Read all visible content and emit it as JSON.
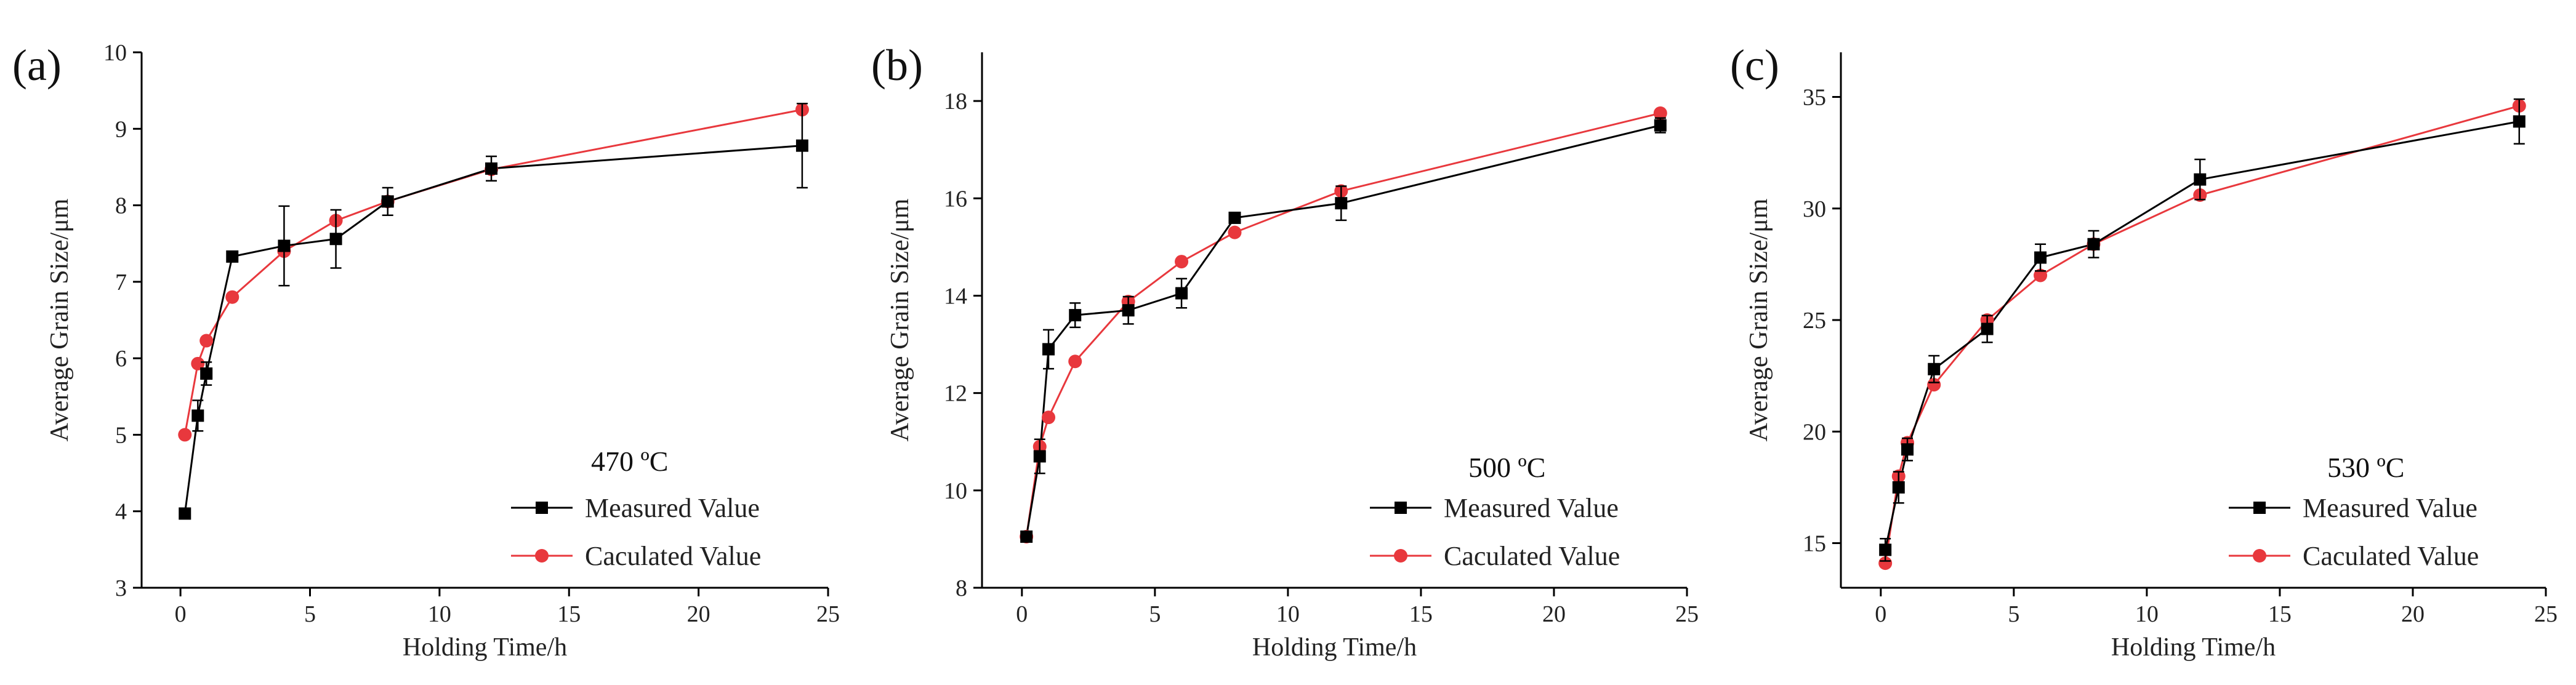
{
  "chart_data": [
    {
      "type": "line",
      "panel_label": "(a)",
      "annotation": "470 ºC",
      "xlabel": "Holding Time/h",
      "ylabel": "Average Grain Size/μm",
      "xlim": [
        -1.5,
        25
      ],
      "ylim": [
        3,
        10
      ],
      "xticks": [
        0,
        5,
        10,
        15,
        20,
        25
      ],
      "yticks": [
        3,
        4,
        5,
        6,
        7,
        8,
        9,
        10
      ],
      "legend_position": "bottom-right",
      "series": [
        {
          "name": "Measured Value",
          "color": "#000000",
          "marker": "square",
          "x": [
            0.17,
            0.67,
            1,
            2,
            4,
            6,
            8,
            12,
            24
          ],
          "y": [
            3.97,
            5.25,
            5.8,
            7.33,
            7.47,
            7.56,
            8.05,
            8.48,
            8.78
          ],
          "err": [
            0.05,
            0.2,
            0.15,
            0.05,
            0.52,
            0.38,
            0.18,
            0.16,
            0.55
          ]
        },
        {
          "name": "Caculated Value",
          "color": "#e8383d",
          "marker": "circle",
          "x": [
            0.17,
            0.67,
            1,
            2,
            4,
            6,
            8,
            12,
            24
          ],
          "y": [
            5.0,
            5.93,
            6.23,
            6.8,
            7.4,
            7.8,
            8.05,
            8.47,
            9.25
          ],
          "err": []
        }
      ]
    },
    {
      "type": "line",
      "panel_label": "(b)",
      "annotation": "500 ºC",
      "xlabel": "Holding Time/h",
      "ylabel": "Average Grain Size/μm",
      "xlim": [
        -1.5,
        25
      ],
      "ylim": [
        8,
        19
      ],
      "xticks": [
        0,
        5,
        10,
        15,
        20,
        25
      ],
      "yticks": [
        8,
        10,
        12,
        14,
        16,
        18
      ],
      "legend_position": "bottom-right",
      "series": [
        {
          "name": "Measured Value",
          "color": "#000000",
          "marker": "square",
          "x": [
            0.17,
            0.67,
            1,
            2,
            4,
            6,
            8,
            12,
            24
          ],
          "y": [
            9.05,
            10.7,
            12.9,
            13.6,
            13.7,
            14.05,
            15.6,
            15.9,
            17.5
          ],
          "err": [
            0.1,
            0.35,
            0.4,
            0.25,
            0.28,
            0.3,
            0.08,
            0.35,
            0.15
          ]
        },
        {
          "name": "Caculated Value",
          "color": "#e8383d",
          "marker": "circle",
          "x": [
            0.17,
            0.67,
            1,
            2,
            4,
            6,
            8,
            12,
            24
          ],
          "y": [
            9.05,
            10.9,
            11.5,
            12.65,
            13.88,
            14.7,
            15.3,
            16.15,
            17.75
          ],
          "err": []
        }
      ]
    },
    {
      "type": "line",
      "panel_label": "(c)",
      "annotation": "530 ºC",
      "xlabel": "Holding Time/h",
      "ylabel": "Average Grain Size/μm",
      "xlim": [
        -1.5,
        25
      ],
      "ylim": [
        13,
        37
      ],
      "xticks": [
        0,
        5,
        10,
        15,
        20,
        25
      ],
      "yticks": [
        15,
        20,
        25,
        30,
        35
      ],
      "legend_position": "bottom-right",
      "series": [
        {
          "name": "Measured Value",
          "color": "#000000",
          "marker": "square",
          "x": [
            0.17,
            0.67,
            1,
            2,
            4,
            6,
            8,
            12,
            24
          ],
          "y": [
            14.7,
            17.5,
            19.2,
            22.8,
            24.6,
            27.8,
            28.4,
            31.3,
            33.9
          ],
          "err": [
            0.5,
            0.7,
            0.5,
            0.6,
            0.6,
            0.6,
            0.6,
            0.9,
            1.0
          ]
        },
        {
          "name": "Caculated Value",
          "color": "#e8383d",
          "marker": "circle",
          "x": [
            0.17,
            0.67,
            1,
            2,
            4,
            6,
            8,
            12,
            24
          ],
          "y": [
            14.1,
            18.0,
            19.5,
            22.1,
            25.0,
            27.0,
            28.4,
            30.6,
            34.6
          ],
          "err": []
        }
      ]
    }
  ]
}
